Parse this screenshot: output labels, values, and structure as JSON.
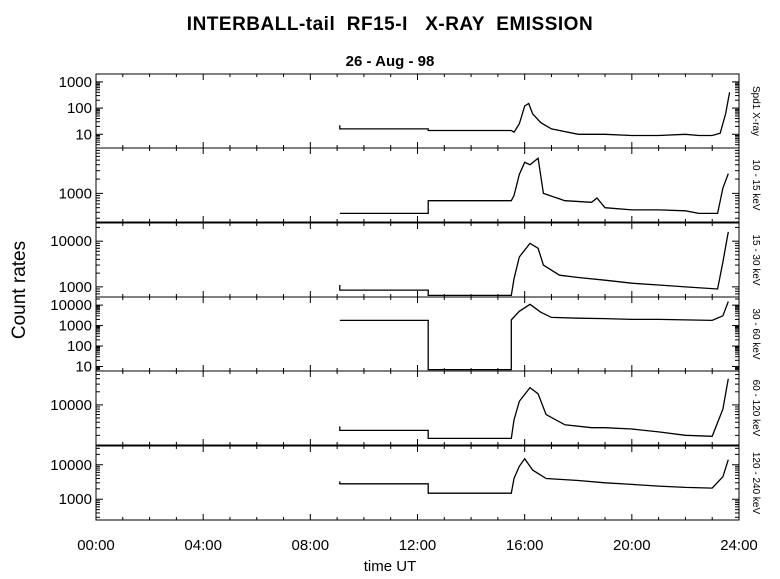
{
  "chart_data": {
    "type": "line",
    "title": "INTERBALL-tail  RF15-I   X-RAY  EMISSION",
    "subtitle": "26 - Aug - 98",
    "ylabel": "Count  rates",
    "xlabel": "time UT",
    "x_range_hours": [
      0,
      24
    ],
    "x_ticks": [
      {
        "hour": 0,
        "label": "00:00"
      },
      {
        "hour": 4,
        "label": "04:00"
      },
      {
        "hour": 8,
        "label": "08:00"
      },
      {
        "hour": 12,
        "label": "12:00"
      },
      {
        "hour": 16,
        "label": "16:00"
      },
      {
        "hour": 20,
        "label": "20:00"
      },
      {
        "hour": 24,
        "label": "24:00"
      }
    ],
    "y_scale": "log",
    "grid": false,
    "panels": [
      {
        "name": "Spd1 X-ray",
        "ylim": [
          3,
          2000
        ],
        "yticks": [
          {
            "value": 10,
            "label": "10"
          },
          {
            "value": 100,
            "label": "100"
          },
          {
            "value": 1000,
            "label": "1000"
          }
        ],
        "points": [
          [
            9.1,
            22
          ],
          [
            9.1,
            16
          ],
          [
            12.4,
            16
          ],
          [
            12.4,
            14
          ],
          [
            15.5,
            14
          ],
          [
            15.6,
            12
          ],
          [
            15.8,
            25
          ],
          [
            16.0,
            120
          ],
          [
            16.15,
            150
          ],
          [
            16.3,
            60
          ],
          [
            16.6,
            28
          ],
          [
            17.0,
            16
          ],
          [
            18.0,
            10
          ],
          [
            19.0,
            10
          ],
          [
            20.0,
            9
          ],
          [
            21.0,
            9
          ],
          [
            22.0,
            10
          ],
          [
            22.5,
            9
          ],
          [
            23.0,
            9
          ],
          [
            23.3,
            11
          ],
          [
            23.5,
            60
          ],
          [
            23.65,
            400
          ]
        ]
      },
      {
        "name": "10 - 15 keV",
        "ylim": [
          250,
          9000
        ],
        "yticks": [
          {
            "value": 1000,
            "label": "1000"
          }
        ],
        "points": [
          [
            9.1,
            380
          ],
          [
            12.4,
            380
          ],
          [
            12.4,
            700
          ],
          [
            15.5,
            700
          ],
          [
            15.6,
            900
          ],
          [
            15.8,
            2500
          ],
          [
            16.0,
            4500
          ],
          [
            16.2,
            4000
          ],
          [
            16.5,
            5500
          ],
          [
            16.7,
            1000
          ],
          [
            17.5,
            700
          ],
          [
            18.5,
            650
          ],
          [
            18.7,
            800
          ],
          [
            19.0,
            500
          ],
          [
            20.0,
            450
          ],
          [
            21.0,
            450
          ],
          [
            22.0,
            430
          ],
          [
            22.5,
            380
          ],
          [
            23.2,
            380
          ],
          [
            23.4,
            1300
          ],
          [
            23.6,
            2600
          ]
        ]
      },
      {
        "name": "15 - 30 keV",
        "ylim": [
          600,
          25000
        ],
        "yticks": [
          {
            "value": 1000,
            "label": "1000"
          },
          {
            "value": 10000,
            "label": "10000"
          }
        ],
        "points": [
          [
            9.1,
            1100
          ],
          [
            9.1,
            850
          ],
          [
            12.4,
            850
          ],
          [
            12.4,
            650
          ],
          [
            15.5,
            650
          ],
          [
            15.6,
            1500
          ],
          [
            15.8,
            4500
          ],
          [
            16.2,
            9000
          ],
          [
            16.5,
            7000
          ],
          [
            16.7,
            3000
          ],
          [
            17.3,
            1800
          ],
          [
            18.0,
            1600
          ],
          [
            19.0,
            1400
          ],
          [
            20.0,
            1200
          ],
          [
            21.0,
            1100
          ],
          [
            22.0,
            1000
          ],
          [
            23.2,
            900
          ],
          [
            23.4,
            3500
          ],
          [
            23.6,
            16000
          ]
        ]
      },
      {
        "name": "30 - 60 keV",
        "ylim": [
          6,
          25000
        ],
        "yticks": [
          {
            "value": 10,
            "label": "10"
          },
          {
            "value": 100,
            "label": "100"
          },
          {
            "value": 1000,
            "label": "1000"
          },
          {
            "value": 10000,
            "label": "10000"
          }
        ],
        "points": [
          [
            9.1,
            1800
          ],
          [
            12.4,
            1800
          ],
          [
            12.4,
            7
          ],
          [
            15.5,
            7
          ],
          [
            15.5,
            1900
          ],
          [
            15.8,
            5000
          ],
          [
            16.2,
            11000
          ],
          [
            16.6,
            4500
          ],
          [
            17.0,
            2500
          ],
          [
            18.0,
            2300
          ],
          [
            19.0,
            2200
          ],
          [
            20.0,
            2000
          ],
          [
            21.0,
            2000
          ],
          [
            22.0,
            1900
          ],
          [
            23.0,
            1800
          ],
          [
            23.4,
            3000
          ],
          [
            23.6,
            15000
          ]
        ]
      },
      {
        "name": "60 - 120 keV",
        "ylim": [
          1200,
          60000
        ],
        "yticks": [
          {
            "value": 10000,
            "label": "10000"
          }
        ],
        "points": [
          [
            9.1,
            3200
          ],
          [
            9.1,
            2600
          ],
          [
            12.4,
            2600
          ],
          [
            12.4,
            1700
          ],
          [
            15.5,
            1700
          ],
          [
            15.6,
            4500
          ],
          [
            15.8,
            12000
          ],
          [
            16.2,
            25000
          ],
          [
            16.5,
            18000
          ],
          [
            16.8,
            6000
          ],
          [
            17.5,
            3500
          ],
          [
            18.5,
            3000
          ],
          [
            19.0,
            3000
          ],
          [
            20.0,
            2800
          ],
          [
            21.0,
            2400
          ],
          [
            22.0,
            2000
          ],
          [
            23.0,
            1900
          ],
          [
            23.4,
            8000
          ],
          [
            23.6,
            40000
          ]
        ]
      },
      {
        "name": "120 - 240 keV",
        "ylim": [
          250,
          35000
        ],
        "yticks": [
          {
            "value": 1000,
            "label": "1000"
          },
          {
            "value": 10000,
            "label": "10000"
          }
        ],
        "points": [
          [
            9.1,
            3300
          ],
          [
            9.1,
            2800
          ],
          [
            12.4,
            2800
          ],
          [
            12.4,
            1500
          ],
          [
            15.5,
            1500
          ],
          [
            15.6,
            4000
          ],
          [
            15.8,
            9000
          ],
          [
            16.0,
            15000
          ],
          [
            16.3,
            7000
          ],
          [
            16.8,
            4000
          ],
          [
            18.0,
            3500
          ],
          [
            19.0,
            3000
          ],
          [
            20.0,
            2700
          ],
          [
            21.0,
            2400
          ],
          [
            22.0,
            2200
          ],
          [
            23.0,
            2100
          ],
          [
            23.4,
            4500
          ],
          [
            23.6,
            14000
          ]
        ]
      }
    ]
  }
}
